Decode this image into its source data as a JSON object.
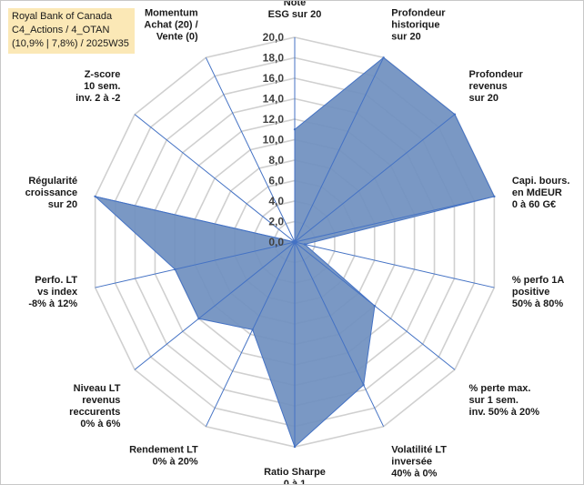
{
  "info": {
    "line1": "Royal Bank of Canada",
    "line2": "C4_Actions / 4_OTAN",
    "line3": "(10,9% | 7,8%) / 2025W35"
  },
  "chart_data": {
    "type": "radar",
    "title": "",
    "axis_range": [
      0,
      20
    ],
    "tick_step": 2,
    "tick_labels": [
      "0,0",
      "2,0",
      "4,0",
      "6,0",
      "8,0",
      "10,0",
      "12,0",
      "14,0",
      "16,0",
      "18,0",
      "20,0"
    ],
    "grid": true,
    "legend": "none",
    "colors": {
      "fill": "#6f8fbf",
      "line": "#4472c4",
      "grid": "#d0d0d0"
    },
    "axes": [
      {
        "label": [
          "Note",
          "ESG sur 20"
        ],
        "value": 11
      },
      {
        "label": [
          "Profondeur",
          "historique",
          "sur 20"
        ],
        "value": 20
      },
      {
        "label": [
          "Profondeur",
          "revenus",
          "sur 20"
        ],
        "value": 20
      },
      {
        "label": [
          "Capi. bours.",
          "en MdEUR",
          "0 à 60 G€"
        ],
        "value": 20
      },
      {
        "label": [
          "% perfo 1A",
          "positive",
          "50% à 80%"
        ],
        "value": 1
      },
      {
        "label": [
          "% perte max.",
          "sur 1 sem.",
          "inv. 50% à 20%"
        ],
        "value": 10
      },
      {
        "label": [
          "Volatilité LT",
          "inversée",
          "40% à 0%"
        ],
        "value": 15.5
      },
      {
        "label": [
          "Ratio Sharpe",
          "0 à 1"
        ],
        "value": 20
      },
      {
        "label": [
          "Rendement LT",
          "0% à 20%"
        ],
        "value": 9.5
      },
      {
        "label": [
          "Niveau LT",
          "revenus",
          "reccurents",
          "0% à 6%"
        ],
        "value": 12
      },
      {
        "label": [
          "Perfo. LT",
          "vs index",
          "-8% à 12%"
        ],
        "value": 12
      },
      {
        "label": [
          "Régularité",
          "croissance",
          "sur 20"
        ],
        "value": 20
      },
      {
        "label": [
          "Z-score",
          "10 sem.",
          "inv. 2 à -2"
        ],
        "value": 0
      },
      {
        "label": [
          "Momentum",
          "Achat (20) /",
          "Vente (0)"
        ],
        "value": 0
      }
    ]
  }
}
